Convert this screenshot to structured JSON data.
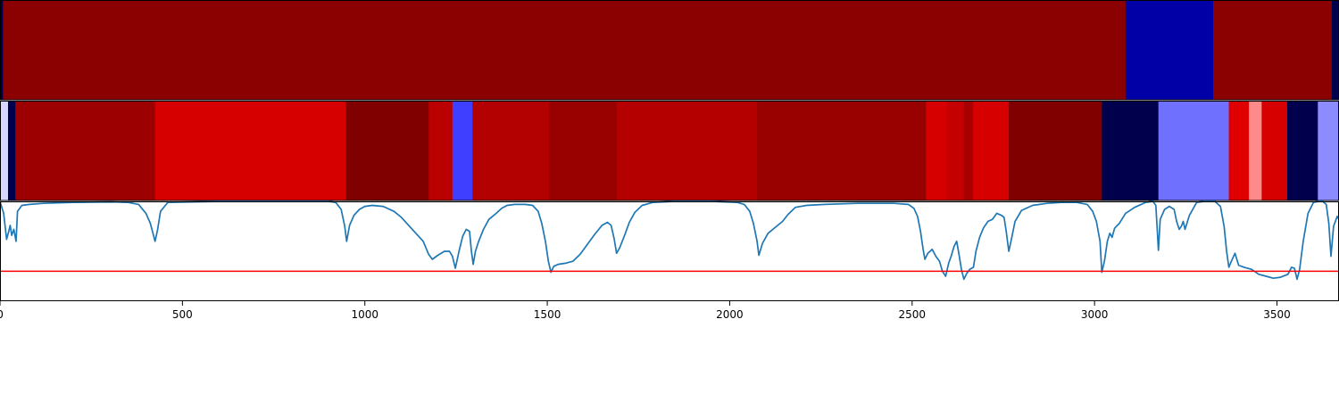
{
  "chart_data": {
    "type": "heatmap",
    "x_range": [
      0,
      3670
    ],
    "x_ticks": [
      0,
      500,
      1000,
      1500,
      2000,
      2500,
      3000,
      3500
    ],
    "x_tick_labels": [
      "0",
      "500",
      "1000",
      "1500",
      "2000",
      "2500",
      "3000",
      "3500"
    ],
    "band_rows": [
      {
        "segments": [
          {
            "x0": 0,
            "x1": 8,
            "color": "#00004c"
          },
          {
            "x0": 8,
            "x1": 3085,
            "color": "#8b0000"
          },
          {
            "x0": 3085,
            "x1": 3325,
            "color": "#0000a6"
          },
          {
            "x0": 3325,
            "x1": 3650,
            "color": "#8b0000"
          },
          {
            "x0": 3650,
            "x1": 3670,
            "color": "#00004c"
          }
        ]
      },
      {
        "segments": [
          {
            "x0": 0,
            "x1": 22,
            "color": "#d6d6ff"
          },
          {
            "x0": 22,
            "x1": 42,
            "color": "#00004c"
          },
          {
            "x0": 42,
            "x1": 425,
            "color": "#9d0000"
          },
          {
            "x0": 425,
            "x1": 948,
            "color": "#d60000"
          },
          {
            "x0": 948,
            "x1": 1175,
            "color": "#800000"
          },
          {
            "x0": 1175,
            "x1": 1240,
            "color": "#bb0000"
          },
          {
            "x0": 1240,
            "x1": 1295,
            "color": "#3f3fff"
          },
          {
            "x0": 1295,
            "x1": 1505,
            "color": "#b30000"
          },
          {
            "x0": 1505,
            "x1": 1690,
            "color": "#990000"
          },
          {
            "x0": 1690,
            "x1": 2075,
            "color": "#b50000"
          },
          {
            "x0": 2075,
            "x1": 2538,
            "color": "#990000"
          },
          {
            "x0": 2538,
            "x1": 2595,
            "color": "#d60000"
          },
          {
            "x0": 2595,
            "x1": 2642,
            "color": "#c50000"
          },
          {
            "x0": 2642,
            "x1": 2667,
            "color": "#a80000"
          },
          {
            "x0": 2667,
            "x1": 2765,
            "color": "#d60000"
          },
          {
            "x0": 2765,
            "x1": 3020,
            "color": "#800000"
          },
          {
            "x0": 3020,
            "x1": 3175,
            "color": "#00004c"
          },
          {
            "x0": 3175,
            "x1": 3368,
            "color": "#7070ff"
          },
          {
            "x0": 3368,
            "x1": 3423,
            "color": "#e00000"
          },
          {
            "x0": 3423,
            "x1": 3458,
            "color": "#ff8a8a"
          },
          {
            "x0": 3458,
            "x1": 3528,
            "color": "#d60000"
          },
          {
            "x0": 3528,
            "x1": 3612,
            "color": "#00004c"
          },
          {
            "x0": 3612,
            "x1": 3670,
            "color": "#8c8cff"
          }
        ]
      }
    ],
    "line_series": {
      "color": "#1f77b4",
      "y_range": [
        0,
        1
      ],
      "points": [
        [
          0,
          1.0
        ],
        [
          10,
          0.88
        ],
        [
          18,
          0.62
        ],
        [
          24,
          0.7
        ],
        [
          28,
          0.76
        ],
        [
          32,
          0.66
        ],
        [
          38,
          0.72
        ],
        [
          44,
          0.6
        ],
        [
          48,
          0.9
        ],
        [
          60,
          0.96
        ],
        [
          80,
          0.97
        ],
        [
          120,
          0.98
        ],
        [
          200,
          0.99
        ],
        [
          300,
          0.995
        ],
        [
          350,
          0.99
        ],
        [
          380,
          0.97
        ],
        [
          400,
          0.88
        ],
        [
          412,
          0.78
        ],
        [
          425,
          0.6
        ],
        [
          432,
          0.72
        ],
        [
          440,
          0.9
        ],
        [
          460,
          0.99
        ],
        [
          600,
          1.0
        ],
        [
          800,
          1.0
        ],
        [
          900,
          1.0
        ],
        [
          920,
          0.99
        ],
        [
          935,
          0.92
        ],
        [
          945,
          0.75
        ],
        [
          950,
          0.6
        ],
        [
          958,
          0.76
        ],
        [
          970,
          0.86
        ],
        [
          985,
          0.92
        ],
        [
          1000,
          0.95
        ],
        [
          1020,
          0.96
        ],
        [
          1050,
          0.95
        ],
        [
          1080,
          0.9
        ],
        [
          1100,
          0.84
        ],
        [
          1120,
          0.76
        ],
        [
          1140,
          0.68
        ],
        [
          1160,
          0.6
        ],
        [
          1175,
          0.47
        ],
        [
          1185,
          0.42
        ],
        [
          1200,
          0.46
        ],
        [
          1218,
          0.5
        ],
        [
          1232,
          0.5
        ],
        [
          1240,
          0.45
        ],
        [
          1248,
          0.33
        ],
        [
          1258,
          0.5
        ],
        [
          1268,
          0.65
        ],
        [
          1278,
          0.72
        ],
        [
          1287,
          0.7
        ],
        [
          1292,
          0.5
        ],
        [
          1297,
          0.37
        ],
        [
          1303,
          0.5
        ],
        [
          1312,
          0.6
        ],
        [
          1325,
          0.72
        ],
        [
          1340,
          0.82
        ],
        [
          1360,
          0.88
        ],
        [
          1375,
          0.93
        ],
        [
          1390,
          0.96
        ],
        [
          1410,
          0.97
        ],
        [
          1440,
          0.97
        ],
        [
          1460,
          0.96
        ],
        [
          1475,
          0.9
        ],
        [
          1485,
          0.78
        ],
        [
          1495,
          0.6
        ],
        [
          1503,
          0.4
        ],
        [
          1510,
          0.29
        ],
        [
          1518,
          0.35
        ],
        [
          1530,
          0.37
        ],
        [
          1550,
          0.38
        ],
        [
          1570,
          0.4
        ],
        [
          1590,
          0.47
        ],
        [
          1610,
          0.57
        ],
        [
          1630,
          0.67
        ],
        [
          1650,
          0.76
        ],
        [
          1665,
          0.79
        ],
        [
          1675,
          0.76
        ],
        [
          1683,
          0.63
        ],
        [
          1690,
          0.48
        ],
        [
          1698,
          0.53
        ],
        [
          1712,
          0.66
        ],
        [
          1725,
          0.79
        ],
        [
          1740,
          0.89
        ],
        [
          1760,
          0.96
        ],
        [
          1790,
          0.99
        ],
        [
          1850,
          1.0
        ],
        [
          1950,
          1.0
        ],
        [
          2020,
          0.99
        ],
        [
          2040,
          0.97
        ],
        [
          2055,
          0.9
        ],
        [
          2065,
          0.78
        ],
        [
          2075,
          0.6
        ],
        [
          2080,
          0.46
        ],
        [
          2090,
          0.58
        ],
        [
          2105,
          0.68
        ],
        [
          2125,
          0.74
        ],
        [
          2145,
          0.8
        ],
        [
          2160,
          0.87
        ],
        [
          2180,
          0.94
        ],
        [
          2210,
          0.96
        ],
        [
          2260,
          0.97
        ],
        [
          2350,
          0.98
        ],
        [
          2450,
          0.98
        ],
        [
          2490,
          0.97
        ],
        [
          2505,
          0.93
        ],
        [
          2515,
          0.85
        ],
        [
          2523,
          0.7
        ],
        [
          2530,
          0.52
        ],
        [
          2535,
          0.42
        ],
        [
          2543,
          0.48
        ],
        [
          2555,
          0.52
        ],
        [
          2565,
          0.45
        ],
        [
          2575,
          0.4
        ],
        [
          2583,
          0.3
        ],
        [
          2592,
          0.25
        ],
        [
          2600,
          0.38
        ],
        [
          2607,
          0.45
        ],
        [
          2615,
          0.55
        ],
        [
          2622,
          0.6
        ],
        [
          2628,
          0.48
        ],
        [
          2635,
          0.32
        ],
        [
          2642,
          0.22
        ],
        [
          2650,
          0.28
        ],
        [
          2658,
          0.32
        ],
        [
          2668,
          0.34
        ],
        [
          2675,
          0.5
        ],
        [
          2685,
          0.64
        ],
        [
          2695,
          0.73
        ],
        [
          2708,
          0.8
        ],
        [
          2720,
          0.82
        ],
        [
          2732,
          0.88
        ],
        [
          2745,
          0.86
        ],
        [
          2752,
          0.84
        ],
        [
          2758,
          0.7
        ],
        [
          2765,
          0.5
        ],
        [
          2772,
          0.62
        ],
        [
          2782,
          0.8
        ],
        [
          2800,
          0.91
        ],
        [
          2830,
          0.96
        ],
        [
          2870,
          0.98
        ],
        [
          2910,
          0.99
        ],
        [
          2950,
          0.99
        ],
        [
          2980,
          0.97
        ],
        [
          2995,
          0.9
        ],
        [
          3005,
          0.8
        ],
        [
          3015,
          0.6
        ],
        [
          3020,
          0.29
        ],
        [
          3027,
          0.4
        ],
        [
          3035,
          0.6
        ],
        [
          3042,
          0.68
        ],
        [
          3048,
          0.64
        ],
        [
          3055,
          0.73
        ],
        [
          3068,
          0.78
        ],
        [
          3085,
          0.88
        ],
        [
          3110,
          0.94
        ],
        [
          3140,
          0.99
        ],
        [
          3160,
          1.0
        ],
        [
          3168,
          0.96
        ],
        [
          3172,
          0.7
        ],
        [
          3175,
          0.51
        ],
        [
          3180,
          0.82
        ],
        [
          3192,
          0.92
        ],
        [
          3205,
          0.95
        ],
        [
          3218,
          0.92
        ],
        [
          3225,
          0.8
        ],
        [
          3232,
          0.72
        ],
        [
          3238,
          0.75
        ],
        [
          3243,
          0.8
        ],
        [
          3248,
          0.72
        ],
        [
          3260,
          0.86
        ],
        [
          3280,
          0.99
        ],
        [
          3300,
          1.0
        ],
        [
          3330,
          1.0
        ],
        [
          3345,
          0.95
        ],
        [
          3355,
          0.75
        ],
        [
          3362,
          0.5
        ],
        [
          3368,
          0.34
        ],
        [
          3375,
          0.4
        ],
        [
          3385,
          0.48
        ],
        [
          3395,
          0.36
        ],
        [
          3410,
          0.34
        ],
        [
          3430,
          0.32
        ],
        [
          3450,
          0.27
        ],
        [
          3470,
          0.25
        ],
        [
          3490,
          0.23
        ],
        [
          3510,
          0.24
        ],
        [
          3530,
          0.27
        ],
        [
          3540,
          0.34
        ],
        [
          3548,
          0.33
        ],
        [
          3555,
          0.22
        ],
        [
          3562,
          0.32
        ],
        [
          3572,
          0.6
        ],
        [
          3585,
          0.88
        ],
        [
          3600,
          0.99
        ],
        [
          3615,
          1.0
        ],
        [
          3625,
          1.0
        ],
        [
          3635,
          0.97
        ],
        [
          3642,
          0.78
        ],
        [
          3648,
          0.45
        ],
        [
          3655,
          0.75
        ],
        [
          3665,
          0.85
        ],
        [
          3670,
          0.82
        ]
      ]
    },
    "threshold_line": {
      "y": 0.3,
      "color": "#ff0000"
    }
  }
}
